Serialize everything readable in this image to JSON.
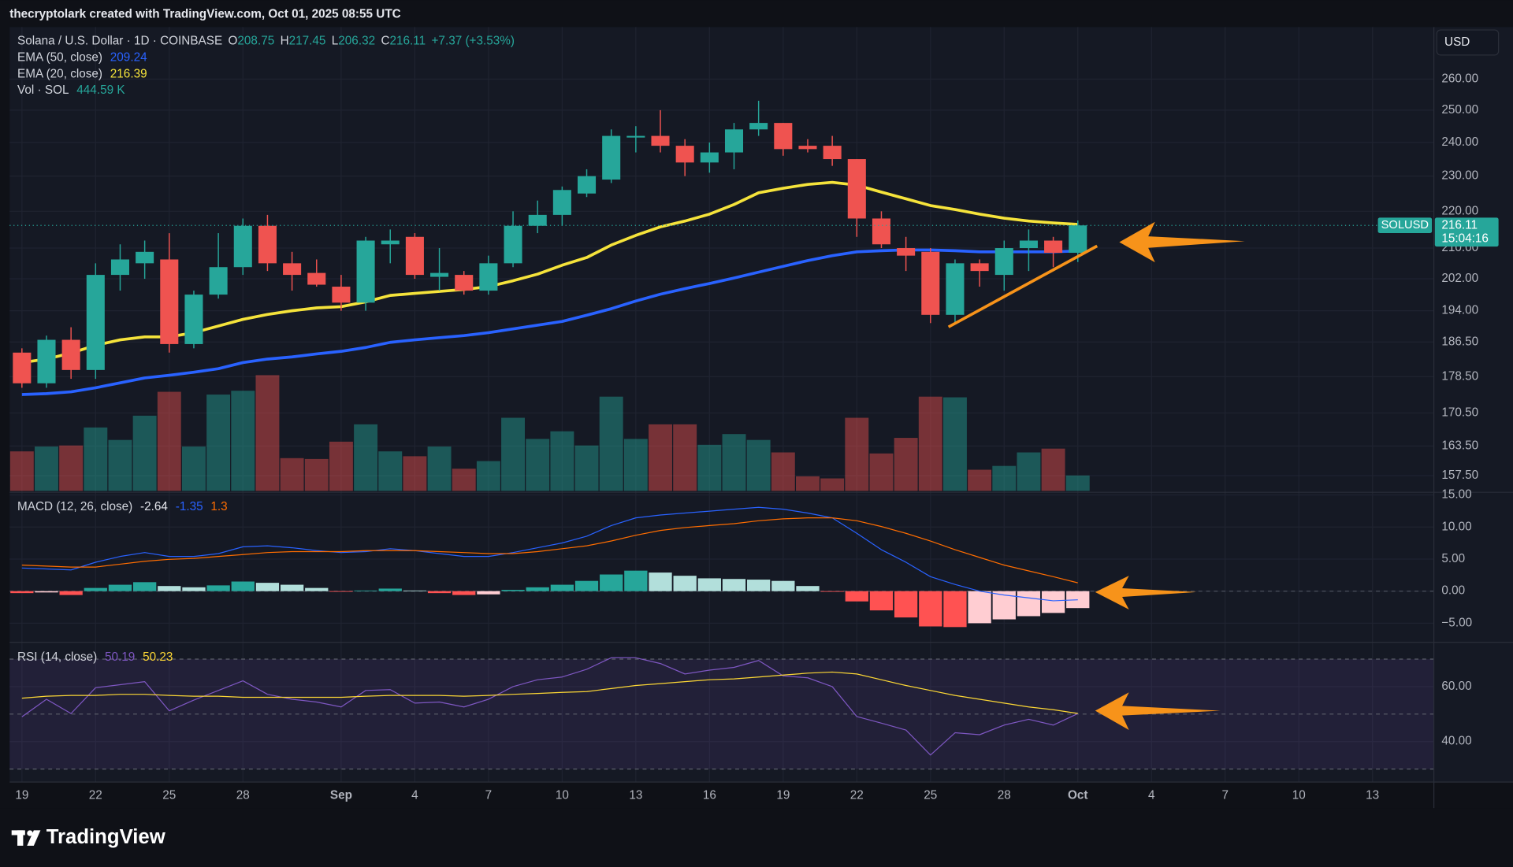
{
  "header": {
    "credit": "thecryptolark created with TradingView.com, Oct 01, 2025 08:55 UTC",
    "brand": "TradingView",
    "currency_button": "USD"
  },
  "chart_data": [
    {
      "type": "candlestick",
      "title": "Solana / U.S. Dollar · 1D · COINBASE",
      "open_label": "O",
      "high_label": "H",
      "low_label": "L",
      "close_label": "C",
      "change_label": "+7.37 (+3.53%)",
      "symbol_tag": "SOLUSD",
      "countdown": "15:04:16",
      "up_color": "#26a69a",
      "down_color": "#ef5350",
      "x": [
        "2025-08-19",
        "2025-08-20",
        "2025-08-21",
        "2025-08-22",
        "2025-08-23",
        "2025-08-24",
        "2025-08-25",
        "2025-08-26",
        "2025-08-27",
        "2025-08-28",
        "2025-08-29",
        "2025-08-30",
        "2025-08-31",
        "2025-09-01",
        "2025-09-02",
        "2025-09-03",
        "2025-09-04",
        "2025-09-05",
        "2025-09-06",
        "2025-09-07",
        "2025-09-08",
        "2025-09-09",
        "2025-09-10",
        "2025-09-11",
        "2025-09-12",
        "2025-09-13",
        "2025-09-14",
        "2025-09-15",
        "2025-09-16",
        "2025-09-17",
        "2025-09-18",
        "2025-09-19",
        "2025-09-20",
        "2025-09-21",
        "2025-09-22",
        "2025-09-23",
        "2025-09-24",
        "2025-09-25",
        "2025-09-26",
        "2025-09-27",
        "2025-09-28",
        "2025-09-29",
        "2025-09-30",
        "2025-10-01"
      ],
      "open": [
        184,
        177,
        187,
        180,
        203,
        206,
        207,
        186,
        198,
        205,
        216,
        206,
        203.5,
        200,
        196,
        211,
        213,
        202.5,
        203,
        199,
        206,
        216,
        219,
        225,
        229,
        241.5,
        242,
        239,
        234,
        237,
        244,
        246,
        239,
        239,
        235,
        218,
        210,
        209,
        193,
        206,
        203,
        210,
        212,
        208.75
      ],
      "high": [
        185,
        188,
        190,
        206,
        211,
        212,
        214,
        199,
        214,
        218,
        219,
        209,
        207,
        203,
        213,
        215,
        214,
        210,
        204,
        208,
        220,
        223,
        227,
        232,
        244,
        245,
        250,
        241,
        240,
        246,
        253,
        246,
        241,
        242,
        235,
        220,
        213,
        210,
        207,
        207,
        212,
        215,
        213,
        217.45
      ],
      "low": [
        176,
        176,
        178,
        178,
        199,
        202,
        184,
        185,
        197,
        203,
        204,
        199,
        200,
        194,
        194,
        206,
        202,
        199,
        198,
        198,
        205,
        214,
        216,
        224,
        228,
        237,
        237,
        230,
        231,
        232,
        242,
        236,
        237,
        233,
        213,
        210,
        204,
        191,
        191,
        200,
        199,
        204,
        205,
        206.32
      ],
      "close": [
        177,
        187,
        180,
        203,
        207,
        209,
        186,
        198,
        205,
        216,
        206,
        203,
        200.5,
        196,
        212,
        212,
        203,
        203.5,
        199,
        206,
        216,
        219,
        226,
        230,
        242,
        242,
        239,
        234,
        237,
        244,
        246,
        238,
        238,
        235,
        218,
        211,
        208,
        193,
        206,
        204,
        210,
        212,
        208.75,
        216.11
      ],
      "overlays": [
        {
          "name": "EMA (50, close)",
          "color": "#2962ff",
          "values": [
            174.5,
            174.7,
            175.1,
            176.0,
            177.1,
            178.2,
            178.8,
            179.5,
            180.3,
            181.7,
            182.5,
            183.0,
            183.7,
            184.3,
            185.2,
            186.4,
            187.0,
            187.5,
            188.0,
            188.7,
            189.6,
            190.5,
            191.4,
            192.9,
            194.5,
            196.4,
            198.1,
            199.5,
            200.8,
            202.2,
            203.7,
            205.2,
            206.7,
            208.0,
            209.0,
            209.3,
            209.5,
            209.5,
            209.3,
            209.0,
            209.0,
            209.0,
            209.0,
            209.24
          ]
        },
        {
          "name": "EMA (20, close)",
          "color": "#f5e33b",
          "values": [
            181.7,
            182.5,
            183.9,
            185.7,
            187.0,
            187.7,
            187.7,
            188.7,
            190.3,
            191.9,
            193.1,
            194.0,
            194.7,
            195.0,
            196.2,
            197.8,
            198.3,
            198.8,
            199.3,
            200.0,
            201.5,
            203.2,
            205.5,
            207.5,
            210.8,
            213.4,
            215.7,
            217.3,
            219.2,
            221.9,
            225.2,
            226.5,
            227.6,
            228.2,
            227.4,
            225.4,
            223.5,
            221.6,
            220.5,
            219.2,
            218.1,
            217.3,
            216.8,
            216.39
          ]
        }
      ],
      "volume": {
        "name": "Vol · SOL",
        "value_label": "444.59 K",
        "color": "#26a69a",
        "values": [
          1140,
          1280,
          1310,
          1830,
          1470,
          2170,
          2860,
          1280,
          2780,
          2890,
          3340,
          945,
          920,
          1420,
          1920,
          1140,
          1000,
          1280,
          640,
          860,
          2110,
          1500,
          1720,
          1310,
          2720,
          1500,
          1920,
          1920,
          1330,
          1640,
          1470,
          1110,
          420,
          360,
          2110,
          1080,
          1530,
          2720,
          2700,
          610,
          720,
          1110,
          1220,
          444.59
        ]
      },
      "log_scale": true,
      "grid": true,
      "ylim": [
        154.3,
        277.7
      ],
      "yticks": [
        {
          "value": 260,
          "label": "260.00"
        },
        {
          "value": 250,
          "label": "250.00"
        },
        {
          "value": 240,
          "label": "240.00"
        },
        {
          "value": 230,
          "label": "230.00"
        },
        {
          "value": 220,
          "label": "220.00"
        },
        {
          "value": 210,
          "label": "210.00"
        },
        {
          "value": 202,
          "label": "202.00"
        },
        {
          "value": 194,
          "label": "194.00"
        },
        {
          "value": 186.5,
          "label": "186.50"
        },
        {
          "value": 178.5,
          "label": "178.50"
        },
        {
          "value": 170.5,
          "label": "170.50"
        },
        {
          "value": 163.5,
          "label": "163.50"
        },
        {
          "value": 157.5,
          "label": "157.50"
        }
      ],
      "xlim": [
        "2025-08-19",
        "2025-10-15"
      ],
      "xticks": [
        {
          "value": "2025-08-19",
          "label": "19"
        },
        {
          "value": "2025-08-22",
          "label": "22"
        },
        {
          "value": "2025-08-25",
          "label": "25"
        },
        {
          "value": "2025-08-28",
          "label": "28"
        },
        {
          "value": "2025-09-01",
          "label": "Sep"
        },
        {
          "value": "2025-09-04",
          "label": "4"
        },
        {
          "value": "2025-09-07",
          "label": "7"
        },
        {
          "value": "2025-09-10",
          "label": "10"
        },
        {
          "value": "2025-09-13",
          "label": "13"
        },
        {
          "value": "2025-09-16",
          "label": "16"
        },
        {
          "value": "2025-09-19",
          "label": "19"
        },
        {
          "value": "2025-09-22",
          "label": "22"
        },
        {
          "value": "2025-09-25",
          "label": "25"
        },
        {
          "value": "2025-09-28",
          "label": "28"
        },
        {
          "value": "2025-10-01",
          "label": "Oct"
        },
        {
          "value": "2025-10-04",
          "label": "4"
        },
        {
          "value": "2025-10-07",
          "label": "7"
        },
        {
          "value": "2025-10-10",
          "label": "10"
        },
        {
          "value": "2025-10-13",
          "label": "13"
        }
      ]
    },
    {
      "type": "macd",
      "title": "MACD (12, 26, close)",
      "histogram": {
        "colors": [
          "#26a69a",
          "#b2dfdb",
          "#ff5252",
          "#ffcdd2"
        ],
        "values": [
          -0.3,
          -0.2,
          -0.6,
          0.5,
          1.0,
          1.4,
          0.8,
          0.6,
          0.9,
          1.5,
          1.3,
          1.0,
          0.5,
          -0.1,
          0.1,
          0.4,
          0.1,
          -0.3,
          -0.6,
          -0.5,
          0.2,
          0.6,
          1.0,
          1.6,
          2.6,
          3.2,
          2.9,
          2.4,
          2.0,
          1.9,
          1.8,
          1.6,
          0.8,
          -0.1,
          -1.6,
          -3.0,
          -4.1,
          -5.5,
          -5.6,
          -5.0,
          -4.4,
          -3.9,
          -3.4,
          -2.64
        ]
      },
      "series": [
        {
          "color": "#2962ff",
          "values": [
            3.61,
            3.46,
            3.31,
            4.51,
            5.41,
            6.02,
            5.41,
            5.41,
            5.86,
            6.92,
            7.07,
            6.77,
            6.32,
            6.02,
            6.17,
            6.62,
            6.32,
            5.86,
            5.41,
            5.41,
            6.02,
            6.77,
            7.52,
            8.57,
            10.23,
            11.43,
            11.88,
            12.18,
            12.48,
            12.78,
            13.08,
            12.78,
            12.18,
            11.43,
            9.02,
            6.47,
            4.51,
            2.26,
            1.05,
            0,
            -0.6,
            -1.05,
            -1.5,
            -1.35
          ]
        },
        {
          "color": "#ff6d00",
          "values": [
            4.06,
            3.91,
            3.76,
            3.76,
            4.21,
            4.66,
            4.96,
            5.11,
            5.41,
            5.71,
            6.02,
            6.17,
            6.17,
            6.17,
            6.32,
            6.32,
            6.32,
            6.17,
            6.02,
            5.86,
            5.86,
            6.17,
            6.62,
            7.07,
            7.82,
            8.72,
            9.47,
            9.92,
            10.23,
            10.53,
            10.98,
            11.28,
            11.43,
            11.43,
            10.98,
            10.08,
            9.02,
            7.82,
            6.47,
            5.26,
            4.06,
            3.16,
            2.26,
            1.3
          ]
        }
      ],
      "ylim": [
        -7.82,
        15.49
      ],
      "zero_line": true,
      "yticks": [
        {
          "value": 15,
          "label": "15.00"
        },
        {
          "value": 10,
          "label": "10.00"
        },
        {
          "value": 5,
          "label": "5.00"
        },
        {
          "value": 0,
          "label": "0.00"
        },
        {
          "value": -5,
          "label": "−5.00"
        }
      ]
    },
    {
      "type": "rsi",
      "title": "RSI (14, close)",
      "band_color": "rgba(126,87,194,0.13)",
      "series": [
        {
          "color": "#7e57c2",
          "values": [
            49.0,
            55.4,
            50.2,
            59.6,
            60.7,
            61.8,
            51.2,
            55.1,
            58.6,
            62.1,
            57.2,
            55.4,
            54.4,
            52.6,
            58.6,
            58.9,
            54.0,
            54.4,
            52.6,
            55.4,
            60.0,
            62.5,
            63.5,
            66.3,
            70.5,
            70.5,
            68.4,
            64.6,
            66.0,
            67.0,
            69.5,
            63.9,
            63.2,
            60.0,
            49.1,
            46.7,
            44.2,
            35.1,
            43.2,
            42.5,
            46.0,
            48.1,
            46.0,
            50.19
          ]
        },
        {
          "color": "#fdd835",
          "values": [
            55.8,
            56.5,
            56.8,
            56.8,
            57.2,
            57.2,
            56.8,
            56.5,
            56.5,
            56.1,
            56.1,
            56.1,
            56.1,
            56.1,
            56.5,
            56.8,
            56.8,
            56.8,
            56.5,
            56.8,
            57.2,
            57.5,
            57.9,
            58.2,
            59.3,
            60.4,
            61.1,
            61.8,
            62.5,
            62.8,
            63.5,
            64.2,
            64.9,
            65.3,
            64.6,
            62.5,
            60.4,
            58.6,
            56.8,
            55.4,
            54.0,
            52.6,
            51.6,
            50.23
          ]
        }
      ],
      "levels": [
        70,
        50,
        30
      ],
      "ylim": [
        25.61,
        75.79
      ],
      "yticks": [
        {
          "value": 60,
          "label": "60.00"
        },
        {
          "value": 40,
          "label": "40.00"
        }
      ]
    }
  ]
}
